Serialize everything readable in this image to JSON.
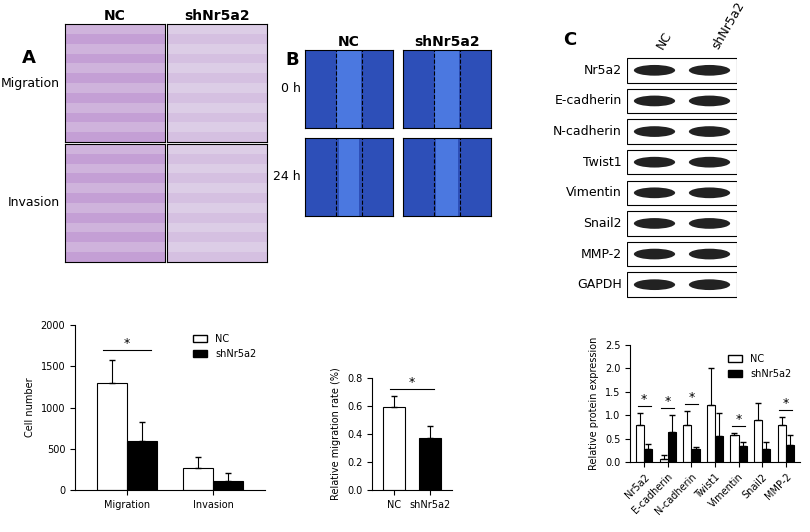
{
  "panels": [
    {
      "letter": "A",
      "columns": [
        "NC",
        "shNr5a2"
      ],
      "rows": [
        "Migration",
        "Invasion"
      ]
    },
    {
      "letter": "B",
      "columns": [
        "NC",
        "shNr5a2"
      ],
      "rows": [
        "0 h",
        "24 h"
      ]
    },
    {
      "letter": "C",
      "columns": [
        "NC",
        "shNr5a2"
      ],
      "rows": [
        "Nr5a2",
        "E-cadherin",
        "N-cadherin",
        "Twist1",
        "Vimentin",
        "Snail2",
        "MMP-2",
        "GAPDH"
      ]
    }
  ],
  "chart_data": [
    {
      "type": "bar",
      "y_label": "Cell number",
      "categories": [
        "Migration",
        "Invasion"
      ],
      "series": [
        {
          "name": "NC",
          "color": "#ffffff",
          "values": [
            1300,
            270
          ],
          "errors": [
            280,
            130
          ]
        },
        {
          "name": "shNr5a2",
          "color": "#000000",
          "values": [
            590,
            110
          ],
          "errors": [
            240,
            100
          ]
        }
      ],
      "ylim": [
        0,
        2000
      ],
      "yticks": [
        0,
        500,
        1000,
        1500,
        2000
      ],
      "legend": "upper right",
      "annotations": [
        {
          "categories": [
            "Migration"
          ],
          "text": "*"
        }
      ]
    },
    {
      "type": "bar",
      "y_label": "Relative migration rate (%)",
      "categories": [
        "NC",
        "shNr5a2"
      ],
      "values": [
        0.59,
        0.37
      ],
      "errors": [
        0.08,
        0.09
      ],
      "colors": [
        "#ffffff",
        "#000000"
      ],
      "ylim": [
        0.0,
        0.8
      ],
      "yticks": [
        0.0,
        0.2,
        0.4,
        0.6,
        0.8
      ],
      "annotations": [
        {
          "categories": [
            "NC",
            "shNr5a2"
          ],
          "text": "*"
        }
      ]
    },
    {
      "type": "bar",
      "y_label": "Relative protein expression",
      "categories": [
        "Nr5a2",
        "E-cadherin",
        "N-cadherin",
        "Twist1",
        "Vimentin",
        "Snail2",
        "MMP-2"
      ],
      "series": [
        {
          "name": "NC",
          "color": "#ffffff",
          "values": [
            0.8,
            0.07,
            0.8,
            1.22,
            0.57,
            0.9,
            0.8
          ],
          "errors": [
            0.25,
            0.07,
            0.28,
            0.78,
            0.05,
            0.37,
            0.17
          ]
        },
        {
          "name": "shNr5a2",
          "color": "#000000",
          "values": [
            0.28,
            0.65,
            0.27,
            0.55,
            0.35,
            0.28,
            0.37
          ],
          "errors": [
            0.1,
            0.35,
            0.06,
            0.5,
            0.08,
            0.15,
            0.2
          ]
        }
      ],
      "ylim": [
        0.0,
        2.5
      ],
      "yticks": [
        0.0,
        0.5,
        1.0,
        1.5,
        2.0,
        2.5
      ],
      "legend": "upper right",
      "annotations": [
        {
          "categories": [
            "Nr5a2"
          ],
          "text": "*"
        },
        {
          "categories": [
            "E-cadherin"
          ],
          "text": "*"
        },
        {
          "categories": [
            "N-cadherin"
          ],
          "text": "*"
        },
        {
          "categories": [
            "Vimentin"
          ],
          "text": "*"
        },
        {
          "categories": [
            "MMP-2"
          ],
          "text": "*"
        }
      ]
    }
  ]
}
